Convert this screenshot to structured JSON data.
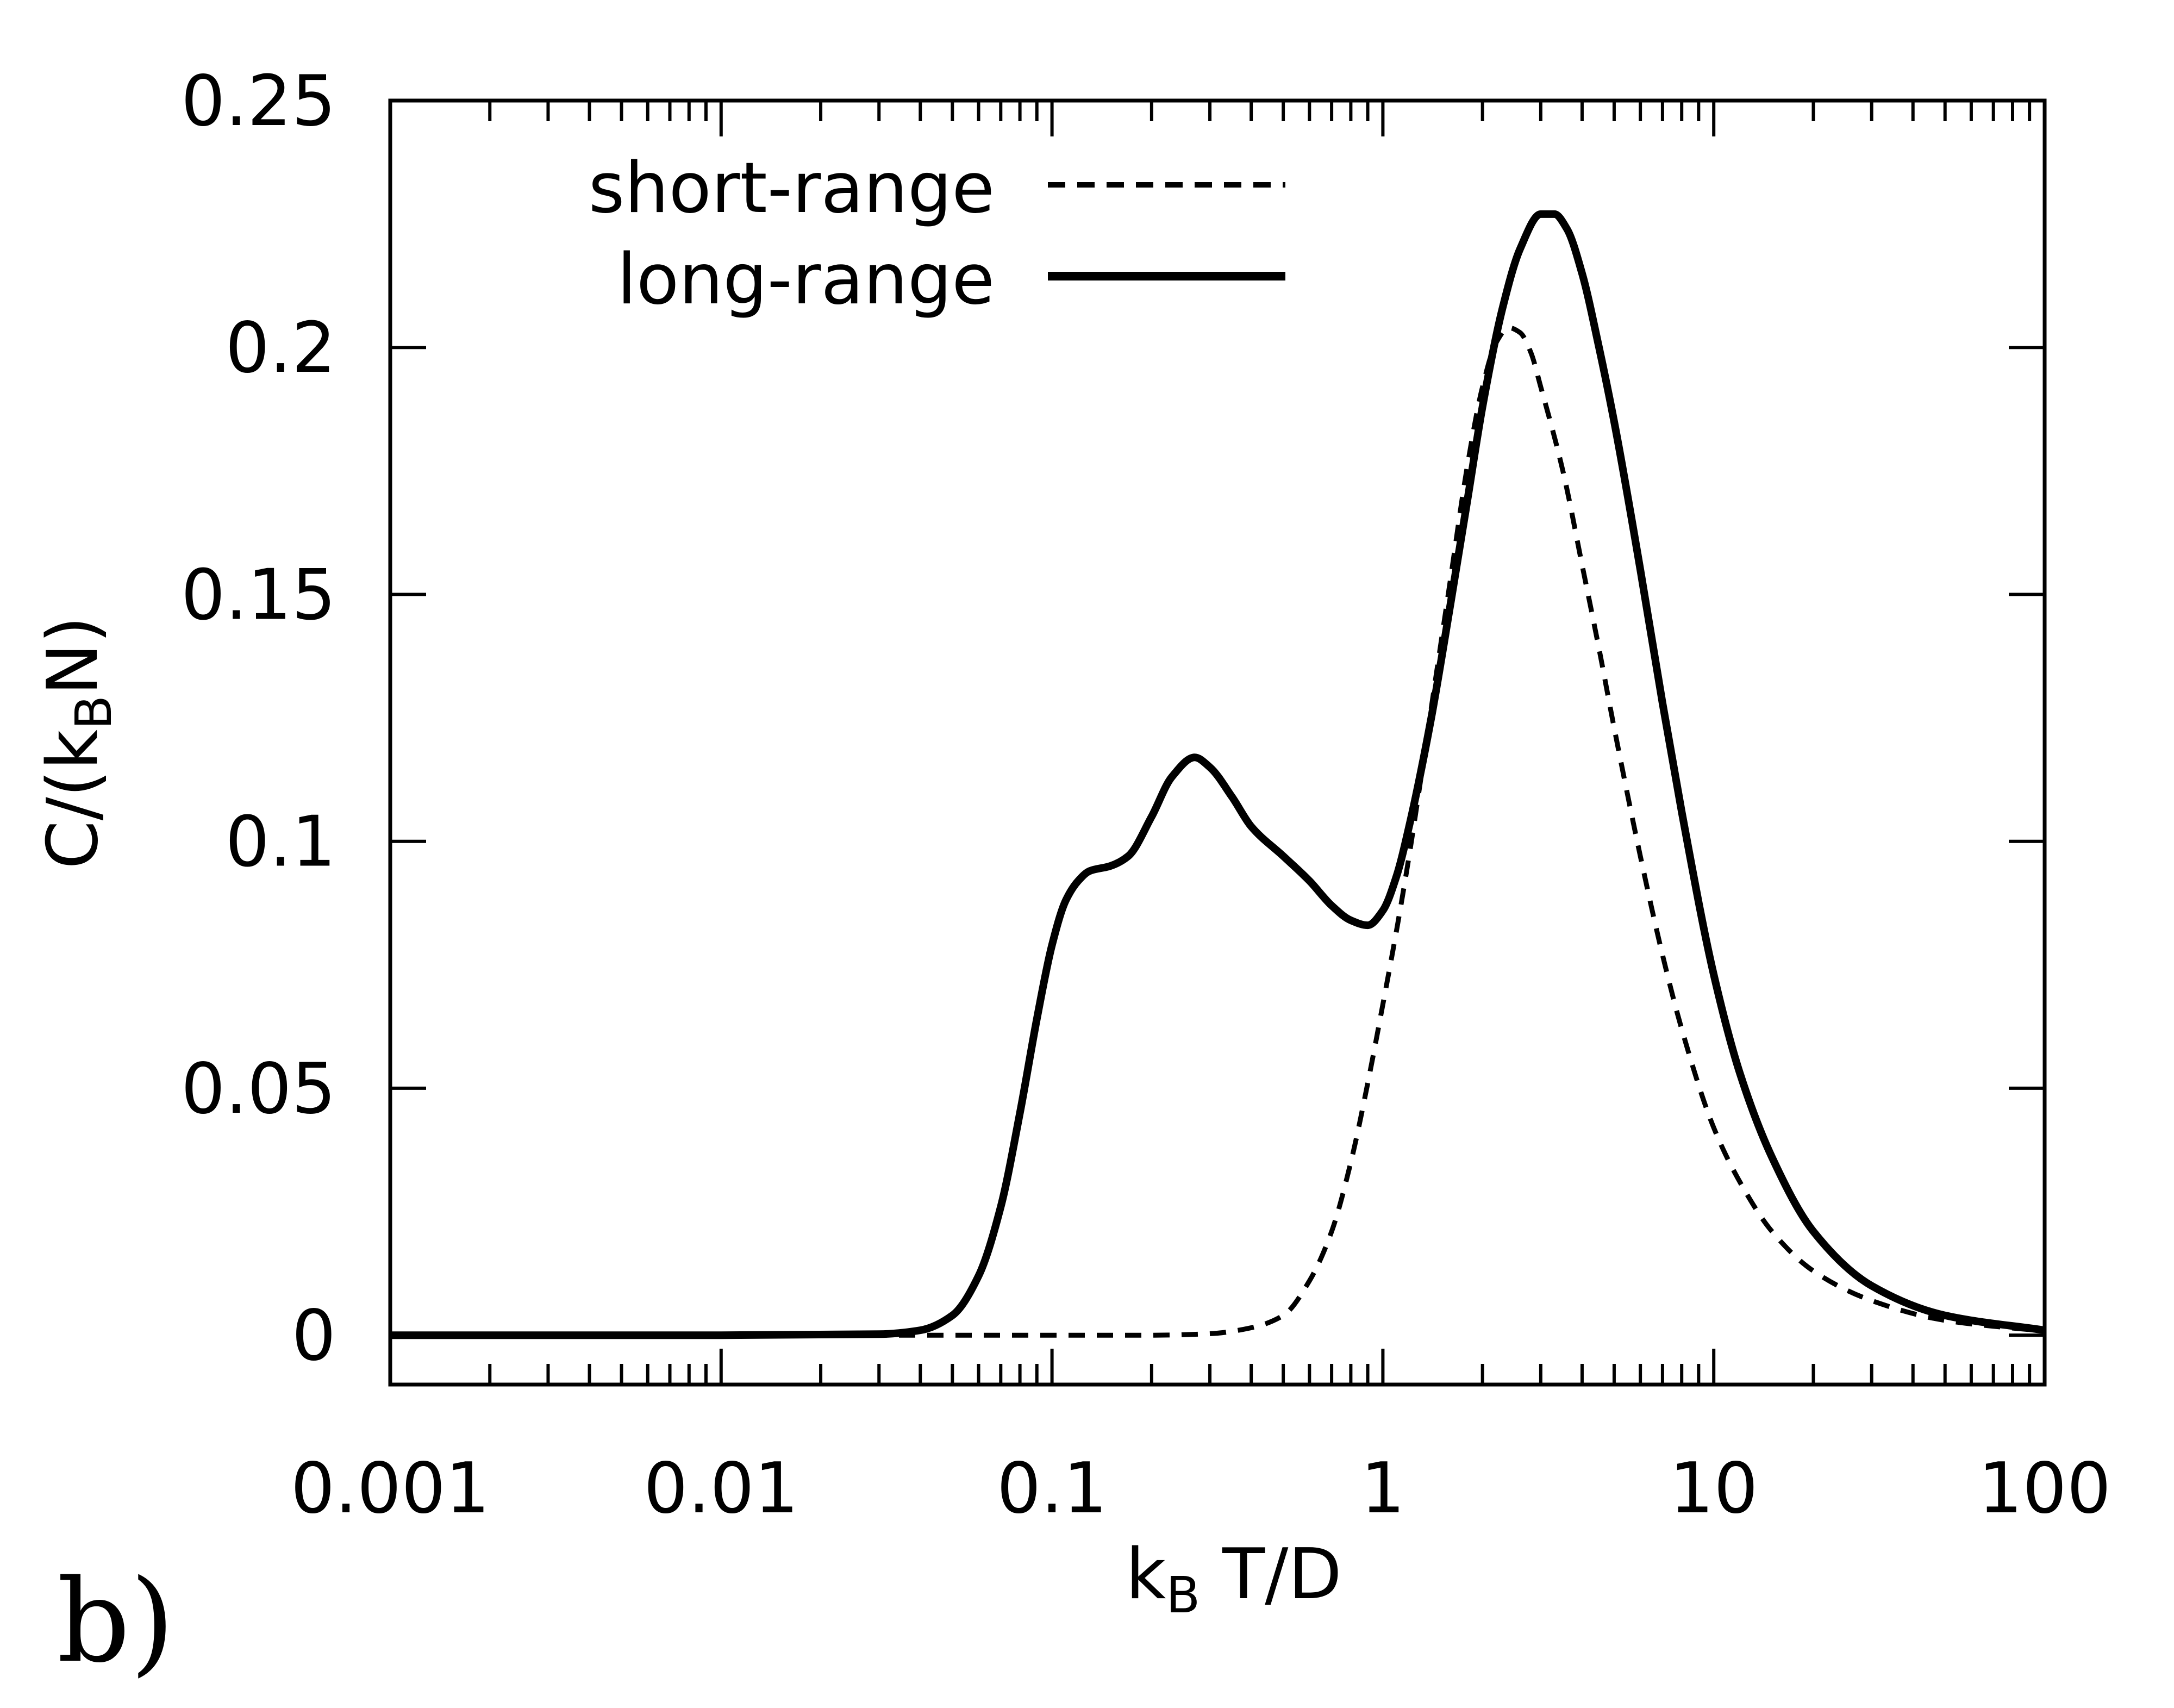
{
  "panel_label": "b)",
  "chart_data": {
    "type": "line",
    "title": "",
    "xlabel": "kB T/D",
    "xlabel_parts": {
      "main": "k",
      "sub": "B",
      "rest": " T/D"
    },
    "ylabel": "C/(kBN)",
    "ylabel_parts": {
      "pre": "C/(k",
      "sub": "B",
      "post": "N)"
    },
    "xscale": "log",
    "xlim": [
      0.001,
      100
    ],
    "ylim": [
      -0.01,
      0.25
    ],
    "x_ticks": [
      0.001,
      0.01,
      0.1,
      1,
      10,
      100
    ],
    "x_tick_labels": [
      "0.001",
      "0.01",
      "0.1",
      "1",
      "10",
      "100"
    ],
    "y_ticks": [
      0,
      0.05,
      0.1,
      0.15,
      0.2,
      0.25
    ],
    "y_tick_labels": [
      "0",
      "0.05",
      "0.1",
      "0.15",
      "0.2",
      "0.25"
    ],
    "grid": false,
    "legend_position": "top-left",
    "series": [
      {
        "name": "short-range",
        "style": "dashed",
        "color": "#000000",
        "x": [
          0.001,
          0.01,
          0.03,
          0.1,
          0.2,
          0.3,
          0.4,
          0.5,
          0.6,
          0.7,
          0.8,
          0.9,
          1.0,
          1.1,
          1.2,
          1.4,
          1.6,
          1.8,
          2.0,
          2.2,
          2.4,
          2.6,
          2.8,
          3.0,
          3.5,
          4.0,
          4.5,
          5.0,
          6.0,
          7.0,
          8.0,
          10,
          12,
          15,
          20,
          30,
          50,
          100
        ],
        "y": [
          0,
          0,
          0,
          0,
          0,
          0.0003,
          0.0015,
          0.004,
          0.011,
          0.021,
          0.035,
          0.051,
          0.067,
          0.082,
          0.097,
          0.127,
          0.153,
          0.176,
          0.192,
          0.201,
          0.204,
          0.203,
          0.199,
          0.192,
          0.175,
          0.156,
          0.139,
          0.123,
          0.097,
          0.077,
          0.062,
          0.042,
          0.031,
          0.021,
          0.013,
          0.007,
          0.003,
          0.0008
        ]
      },
      {
        "name": "long-range",
        "style": "solid",
        "color": "#000000",
        "x": [
          0.001,
          0.01,
          0.03,
          0.04,
          0.05,
          0.06,
          0.07,
          0.08,
          0.09,
          0.1,
          0.11,
          0.12,
          0.13,
          0.15,
          0.17,
          0.2,
          0.23,
          0.27,
          0.3,
          0.35,
          0.4,
          0.5,
          0.6,
          0.7,
          0.8,
          0.9,
          1.0,
          1.1,
          1.2,
          1.4,
          1.6,
          1.8,
          2.0,
          2.3,
          2.6,
          3.0,
          3.3,
          3.6,
          4.0,
          4.5,
          5.0,
          6.0,
          7.0,
          8.0,
          10,
          12,
          15,
          20,
          30,
          50,
          100
        ],
        "y": [
          0,
          0,
          0.0002,
          0.001,
          0.004,
          0.012,
          0.026,
          0.045,
          0.064,
          0.079,
          0.088,
          0.092,
          0.094,
          0.095,
          0.097,
          0.105,
          0.113,
          0.117,
          0.115,
          0.109,
          0.103,
          0.097,
          0.092,
          0.087,
          0.084,
          0.083,
          0.086,
          0.093,
          0.103,
          0.125,
          0.148,
          0.169,
          0.188,
          0.208,
          0.22,
          0.227,
          0.227,
          0.224,
          0.215,
          0.2,
          0.185,
          0.155,
          0.128,
          0.106,
          0.073,
          0.053,
          0.036,
          0.021,
          0.01,
          0.004,
          0.001
        ]
      }
    ]
  }
}
